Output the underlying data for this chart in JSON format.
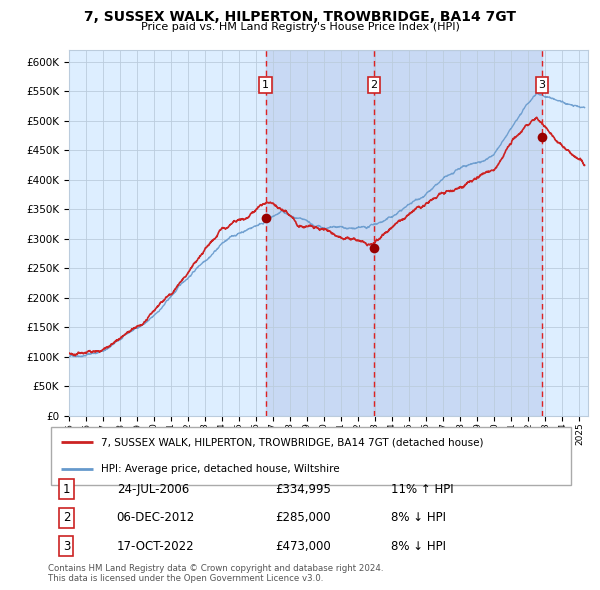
{
  "title_line1": "7, SUSSEX WALK, HILPERTON, TROWBRIDGE, BA14 7GT",
  "title_line2": "Price paid vs. HM Land Registry's House Price Index (HPI)",
  "ylim": [
    0,
    620000
  ],
  "yticks": [
    0,
    50000,
    100000,
    150000,
    200000,
    250000,
    300000,
    350000,
    400000,
    450000,
    500000,
    550000,
    600000
  ],
  "ytick_labels": [
    "£0",
    "£50K",
    "£100K",
    "£150K",
    "£200K",
    "£250K",
    "£300K",
    "£350K",
    "£400K",
    "£450K",
    "£500K",
    "£550K",
    "£600K"
  ],
  "background_color": "#ffffff",
  "plot_bg_color": "#ddeeff",
  "grid_color": "#bbccdd",
  "hpi_line_color": "#6699cc",
  "price_line_color": "#cc2222",
  "sale_dot_color": "#990000",
  "vline_color": "#dd2222",
  "shade_color": "#bbccee",
  "sale1_date_num": 2006.56,
  "sale1_price": 334995,
  "sale2_date_num": 2012.93,
  "sale2_price": 285000,
  "sale3_date_num": 2022.79,
  "sale3_price": 473000,
  "legend_label1": "7, SUSSEX WALK, HILPERTON, TROWBRIDGE, BA14 7GT (detached house)",
  "legend_label2": "HPI: Average price, detached house, Wiltshire",
  "table_rows": [
    [
      "1",
      "24-JUL-2006",
      "£334,995",
      "11% ↑ HPI"
    ],
    [
      "2",
      "06-DEC-2012",
      "£285,000",
      "8% ↓ HPI"
    ],
    [
      "3",
      "17-OCT-2022",
      "£473,000",
      "8% ↓ HPI"
    ]
  ],
  "footnote": "Contains HM Land Registry data © Crown copyright and database right 2024.\nThis data is licensed under the Open Government Licence v3.0.",
  "xmin": 1995.0,
  "xmax": 2025.5,
  "xtick_years": [
    1995,
    1996,
    1997,
    1998,
    1999,
    2000,
    2001,
    2002,
    2003,
    2004,
    2005,
    2006,
    2007,
    2008,
    2009,
    2010,
    2011,
    2012,
    2013,
    2014,
    2015,
    2016,
    2017,
    2018,
    2019,
    2020,
    2021,
    2022,
    2023,
    2024,
    2025
  ]
}
